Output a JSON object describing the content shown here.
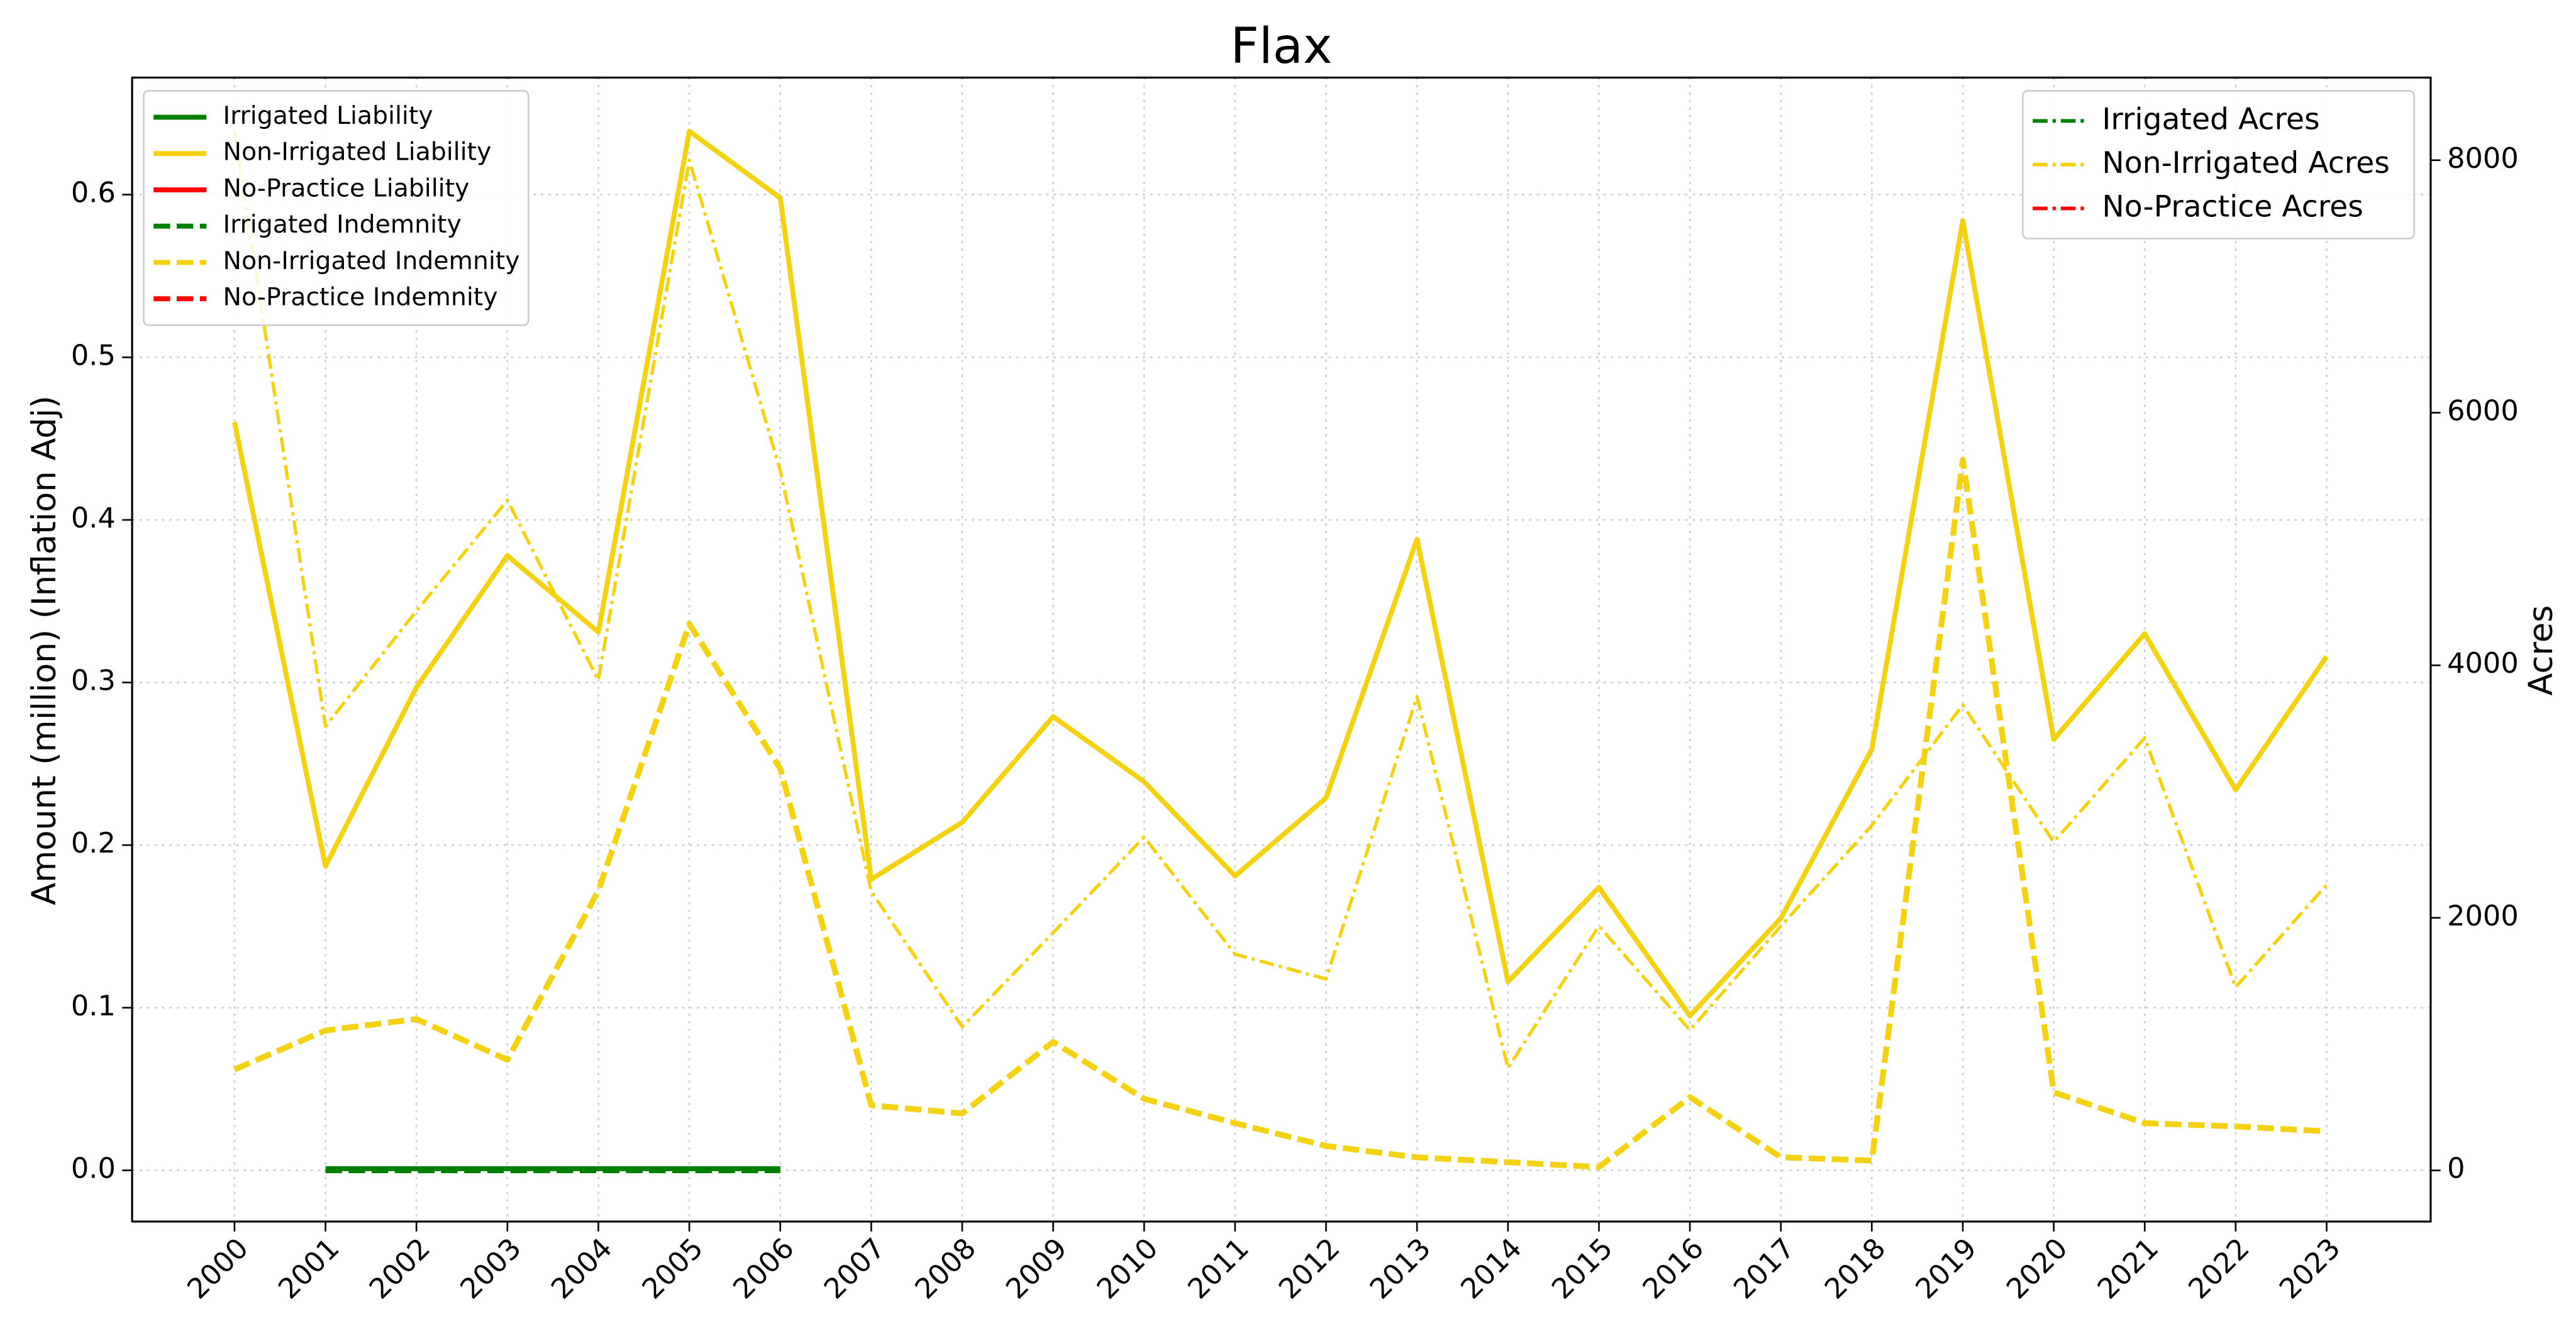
{
  "chart_data": {
    "type": "line",
    "title": "Flax",
    "ylabel": "Amount (million) (Inflation Adj)",
    "y2label": "Acres",
    "categories": [
      "2000",
      "2001",
      "2002",
      "2003",
      "2004",
      "2005",
      "2006",
      "2007",
      "2008",
      "2009",
      "2010",
      "2011",
      "2012",
      "2013",
      "2014",
      "2015",
      "2016",
      "2017",
      "2018",
      "2019",
      "2020",
      "2021",
      "2022",
      "2023"
    ],
    "ylim": [
      -0.0315,
      0.672
    ],
    "yticks": [
      {
        "value": 0,
        "label": "0.0"
      },
      0.1,
      0.2,
      0.3,
      0.4,
      0.5,
      0.6
    ],
    "y2lim": [
      -405,
      8654
    ],
    "y2ticks": [
      0,
      2000,
      4000,
      6000,
      8000
    ],
    "grid": true,
    "legend_loc": "upper left",
    "legend2_loc": "upper right",
    "series": [
      {
        "name": "Irrigated Liability",
        "color": "#008000",
        "linestyle": "solid",
        "axis": "y",
        "values": [
          null,
          0.001,
          0.001,
          0.001,
          0.001,
          0.001,
          0.001,
          null,
          null,
          null,
          null,
          null,
          null,
          null,
          null,
          null,
          null,
          null,
          null,
          null,
          null,
          null,
          null,
          null
        ]
      },
      {
        "name": "Non-Irrigated Liability",
        "color": "#f5d211",
        "linestyle": "solid",
        "axis": "y",
        "values": [
          0.46,
          0.187,
          0.297,
          0.378,
          0.331,
          0.639,
          0.598,
          0.179,
          0.214,
          0.279,
          0.239,
          0.181,
          0.229,
          0.388,
          0.116,
          0.174,
          0.095,
          0.155,
          0.259,
          0.584,
          0.265,
          0.33,
          0.234,
          0.316
        ]
      },
      {
        "name": "No-Practice Liability",
        "color": "#ff0000",
        "linestyle": "solid",
        "axis": "y",
        "values": [
          null,
          null,
          null,
          null,
          null,
          null,
          null,
          null,
          null,
          null,
          null,
          null,
          null,
          null,
          null,
          null,
          null,
          null,
          null,
          null,
          null,
          null,
          null,
          null
        ]
      },
      {
        "name": "Irrigated Indemnity",
        "color": "#008000",
        "linestyle": "dashed",
        "axis": "y",
        "values": [
          null,
          0,
          0,
          0,
          0,
          0,
          0,
          null,
          null,
          null,
          null,
          null,
          null,
          null,
          null,
          null,
          null,
          null,
          null,
          null,
          null,
          null,
          null,
          null
        ]
      },
      {
        "name": "Non-Irrigated Indemnity",
        "color": "#f5d211",
        "linestyle": "dashed",
        "axis": "y",
        "values": [
          0.062,
          0.086,
          0.093,
          0.068,
          0.172,
          0.336,
          0.247,
          0.04,
          0.035,
          0.079,
          0.044,
          0.029,
          0.015,
          0.008,
          0.005,
          0.002,
          0.045,
          0.008,
          0.006,
          0.437,
          0.048,
          0.029,
          0.027,
          0.024
        ]
      },
      {
        "name": "No-Practice Indemnity",
        "color": "#ff0000",
        "linestyle": "dashed",
        "axis": "y",
        "values": [
          null,
          null,
          null,
          null,
          null,
          null,
          null,
          null,
          null,
          null,
          null,
          null,
          null,
          null,
          null,
          null,
          null,
          null,
          null,
          null,
          null,
          null,
          null,
          null
        ]
      },
      {
        "name": "Irrigated Acres",
        "color": "#008000",
        "linestyle": "dashdot",
        "axis": "y2",
        "values": [
          null,
          null,
          null,
          null,
          null,
          null,
          null,
          null,
          null,
          null,
          null,
          null,
          null,
          null,
          null,
          null,
          null,
          null,
          null,
          null,
          null,
          null,
          null,
          null
        ]
      },
      {
        "name": "Non-Irrigated Acres",
        "color": "#f5d211",
        "linestyle": "dashdot",
        "axis": "y2",
        "values": [
          8222,
          3516,
          4431,
          5307,
          3882,
          8000,
          5542,
          2209,
          1137,
          1882,
          2640,
          1712,
          1516,
          3752,
          810,
          1935,
          1111,
          1935,
          2732,
          3686,
          2601,
          3425,
          1451,
          2261
        ]
      },
      {
        "name": "No-Practice Acres",
        "color": "#ff0000",
        "linestyle": "dashdot",
        "axis": "y2",
        "values": [
          null,
          null,
          null,
          null,
          null,
          null,
          null,
          null,
          null,
          null,
          null,
          null,
          null,
          null,
          null,
          null,
          null,
          null,
          null,
          null,
          null,
          null,
          null,
          null
        ]
      }
    ]
  }
}
